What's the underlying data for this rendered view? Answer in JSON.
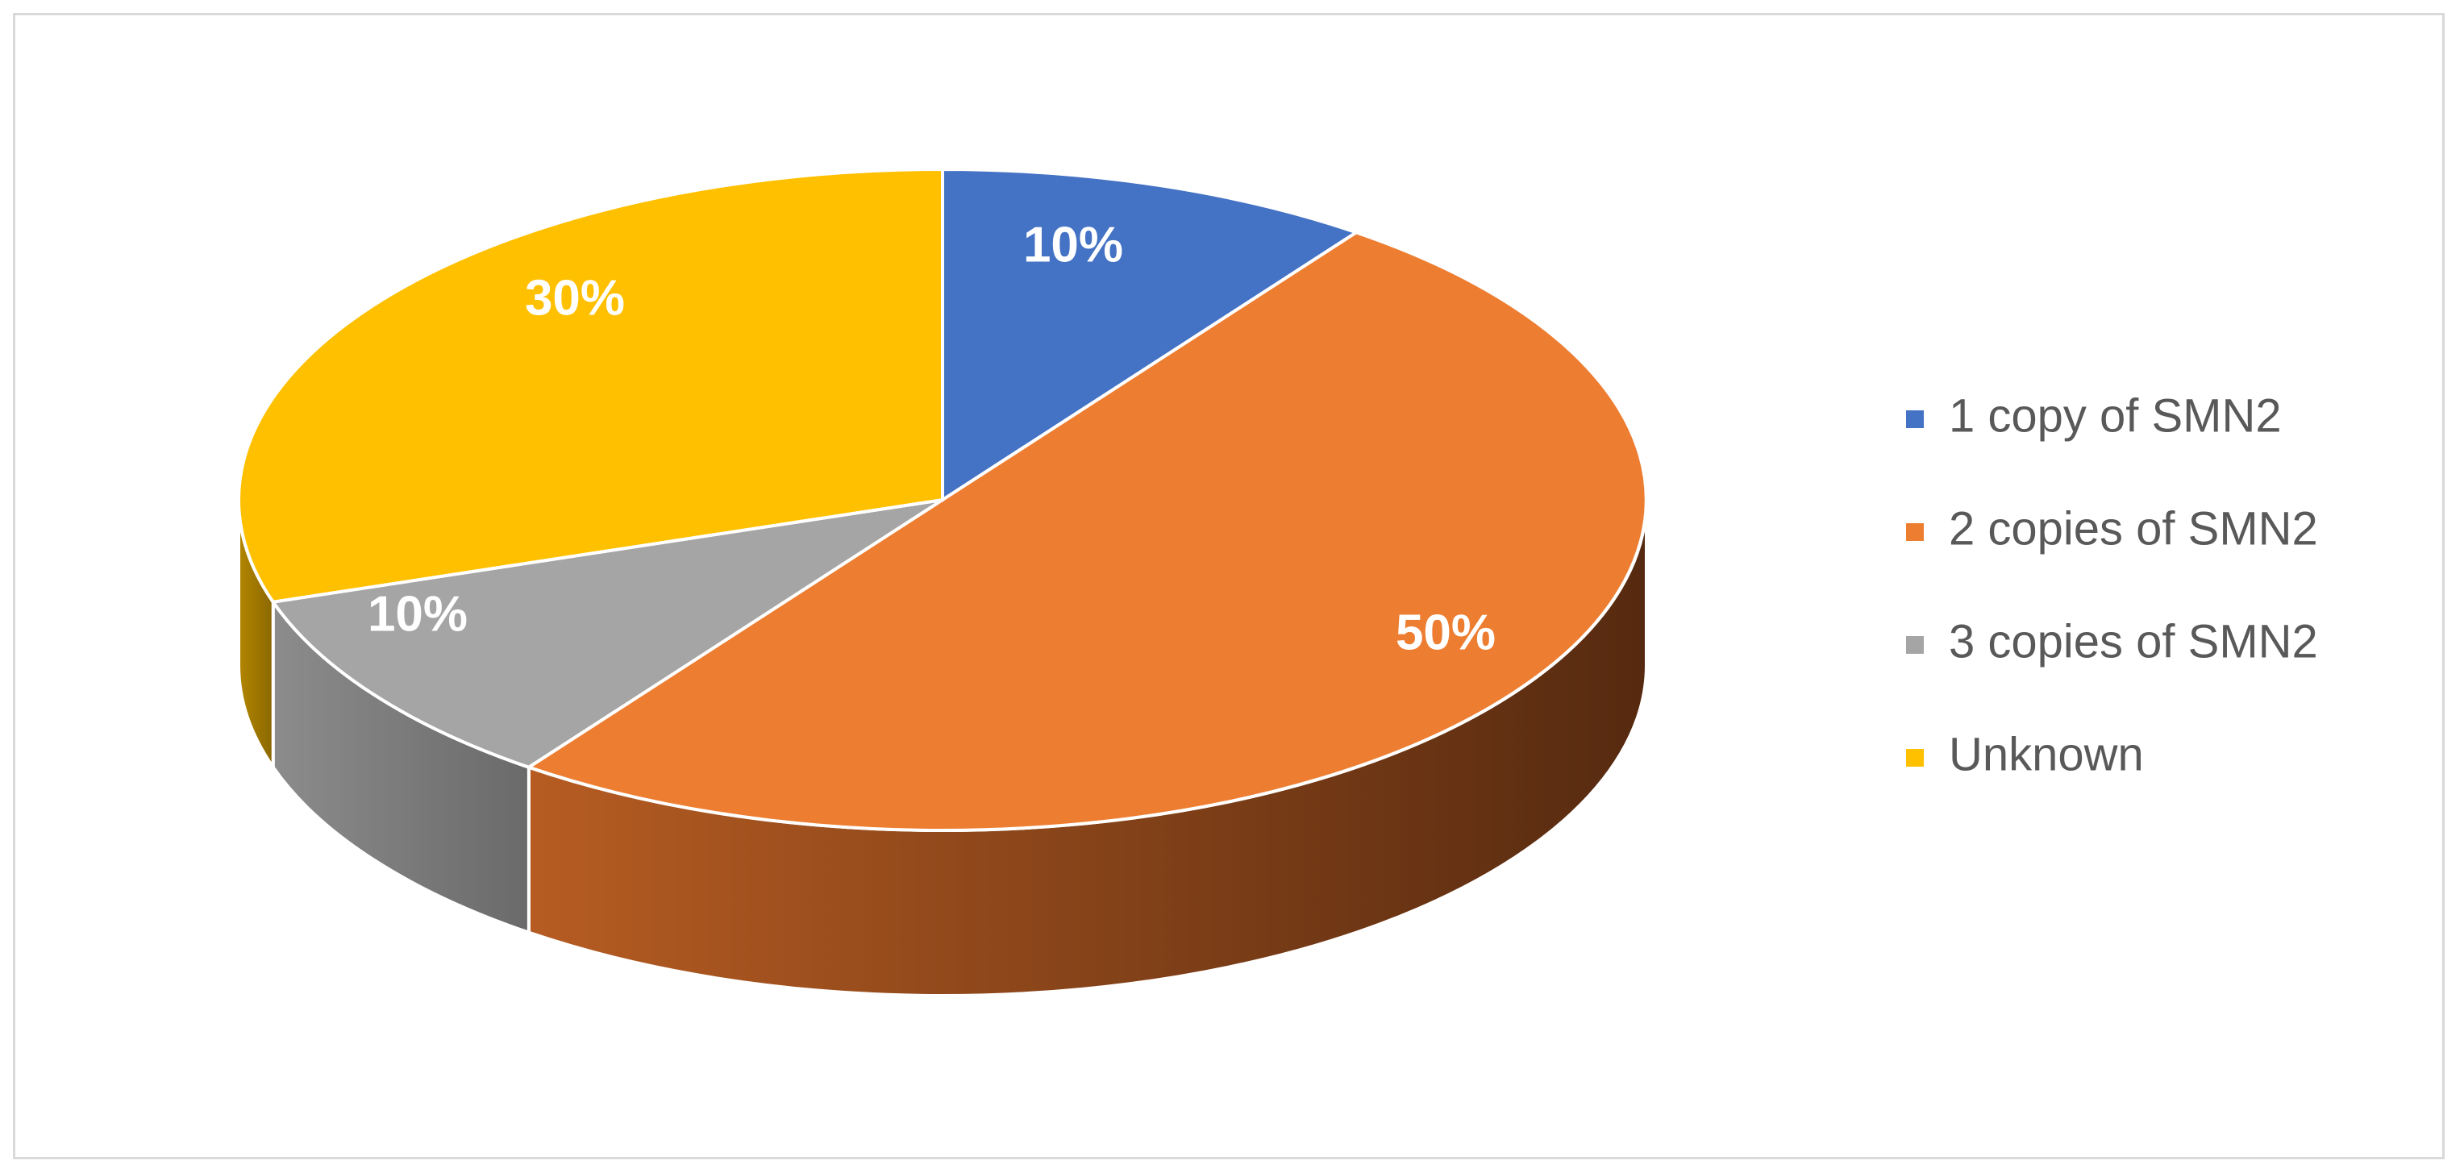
{
  "chart_data": {
    "type": "pie",
    "style": "3d",
    "title": "",
    "categories": [
      "1 copy of SMN2",
      "2 copies of SMN2",
      "3 copies of SMN2",
      "Unknown"
    ],
    "values": [
      10,
      50,
      10,
      30
    ],
    "data_labels": [
      "10%",
      "50%",
      "10%",
      "30%"
    ],
    "colors": [
      "#4472c4",
      "#ed7d31",
      "#a5a5a5",
      "#ffc000"
    ],
    "legend_position": "right"
  }
}
